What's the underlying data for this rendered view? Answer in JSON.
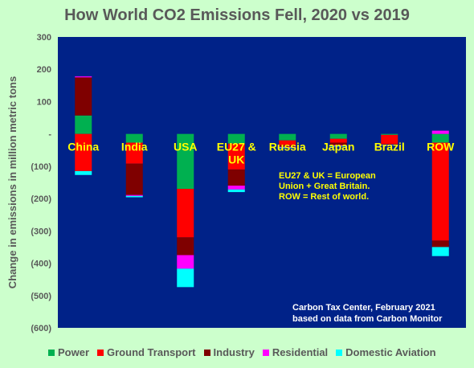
{
  "chart_data": {
    "type": "bar",
    "stacked": true,
    "title": "How World CO2 Emissions Fell, 2020 vs 2019",
    "ylabel": "Change in emissions in million metric tons",
    "xlabel": "",
    "ylim": [
      -600,
      300
    ],
    "yticks": [
      300,
      200,
      100,
      0,
      -100,
      -200,
      -300,
      -400,
      -500,
      -600
    ],
    "ytick_labels": [
      "300",
      "200",
      "100",
      "-",
      "(100)",
      "(200)",
      "(300)",
      "(400)",
      "(500)",
      "(600)"
    ],
    "categories": [
      "China",
      "India",
      "USA",
      "EU27 & UK",
      "Russia",
      "Japan",
      "Brazil",
      "ROW"
    ],
    "series": [
      {
        "name": "Power",
        "color": "#00b050",
        "values": [
          57,
          -27,
          -170,
          -30,
          -20,
          -15,
          -3,
          -27
        ]
      },
      {
        "name": "Ground Transport",
        "color": "#ff0000",
        "values": [
          -115,
          -65,
          -150,
          -80,
          -15,
          -12,
          -28,
          -303
        ]
      },
      {
        "name": "Industry",
        "color": "#7f0000",
        "values": [
          118,
          -97,
          -55,
          -50,
          -5,
          -8,
          -2,
          -20
        ]
      },
      {
        "name": "Residential",
        "color": "#ff00ff",
        "values": [
          3,
          -3,
          -42,
          -12,
          -2,
          -2,
          -1,
          10
        ]
      },
      {
        "name": "Domestic Aviation",
        "color": "#00ffff",
        "values": [
          -12,
          -4,
          -57,
          -8,
          -2,
          -2,
          -1,
          -28
        ]
      }
    ],
    "grid": false,
    "legend_position": "bottom",
    "plot_background": "#002288",
    "annotations": [
      "EU27 & UK = European Union + Great Britain.",
      "ROW = Rest of world.",
      "Carbon Tax Center, February 2021",
      "based on data from Carbon Monitor"
    ]
  }
}
